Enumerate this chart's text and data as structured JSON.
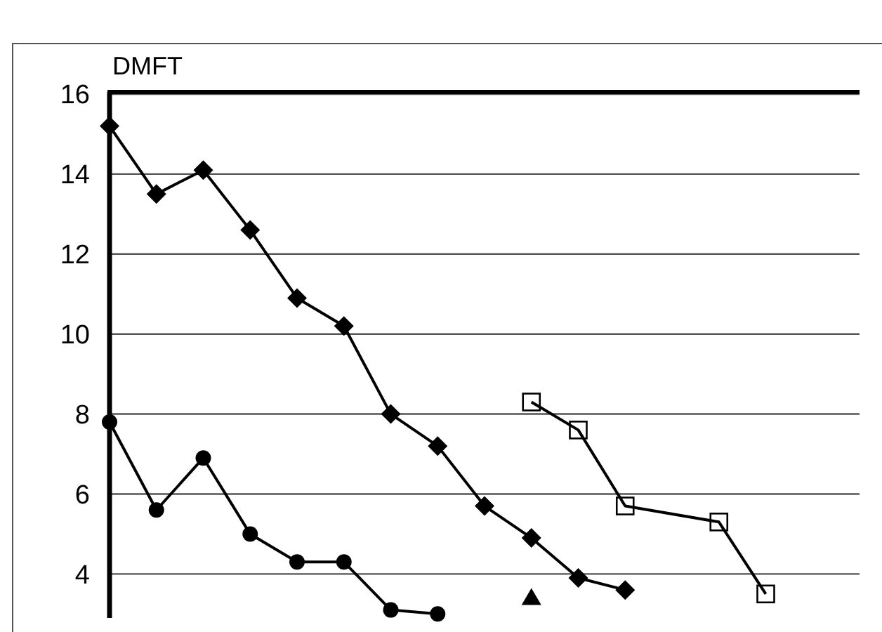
{
  "chart_data": {
    "type": "line",
    "ylabel": "DMFT",
    "categories": [
      null,
      null,
      null,
      null,
      null,
      null,
      null,
      null,
      null,
      null,
      null,
      null,
      null,
      null,
      null,
      null,
      null
    ],
    "ylim": [
      2.9,
      16
    ],
    "yticks": [
      4,
      6,
      8,
      10,
      12,
      14,
      16
    ],
    "grid": "y",
    "line_style": "solid",
    "series": [
      {
        "color": "#000000",
        "marker": "diamond",
        "values": [
          15.2,
          13.5,
          14.1,
          12.6,
          10.9,
          10.2,
          8.0,
          7.2,
          5.7,
          4.9,
          3.9,
          3.6,
          null,
          null,
          null,
          null,
          null
        ]
      },
      {
        "color": "#000000",
        "marker": "circle",
        "values": [
          7.8,
          5.6,
          6.9,
          5.0,
          4.3,
          4.3,
          3.1,
          3.0,
          null,
          null,
          null,
          null,
          null,
          null,
          null,
          null,
          null
        ]
      },
      {
        "color": "#000000",
        "marker": "triangle",
        "values": [
          null,
          null,
          null,
          null,
          null,
          null,
          null,
          null,
          null,
          3.4,
          null,
          null,
          null,
          null,
          null,
          null,
          null
        ]
      },
      {
        "color": "#000000",
        "marker": "square",
        "values": [
          null,
          null,
          null,
          null,
          null,
          null,
          null,
          null,
          null,
          8.3,
          7.6,
          5.7,
          null,
          5.3,
          3.5,
          null,
          null
        ]
      }
    ]
  }
}
